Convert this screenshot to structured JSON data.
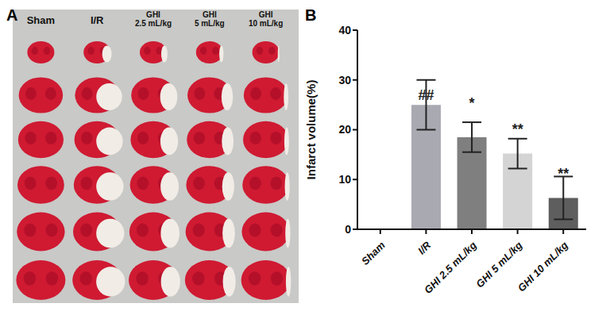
{
  "figure": {
    "panel_labels": [
      "A",
      "B"
    ],
    "photo_columns": [
      [
        "Sham"
      ],
      [
        "I/R"
      ],
      [
        "GHI",
        "2.5 mL/kg"
      ],
      [
        "GHI",
        "5 mL/kg"
      ],
      [
        "GHI",
        "10 mL/kg"
      ]
    ]
  },
  "chart_data": {
    "type": "bar",
    "y_label": "Infarct volume(%)",
    "categories": [
      "Sham",
      "I/R",
      "GHI 2.5 mL/kg",
      "GHI 5 mL/kg",
      "GHI 10 mL/kg"
    ],
    "values": [
      0,
      25,
      18.5,
      15.2,
      6.3
    ],
    "errors": [
      0,
      5,
      3,
      3,
      4.3
    ],
    "significance": [
      null,
      "##",
      "*",
      "**",
      "**"
    ],
    "colors": [
      "#a9a9b2",
      "#a9a9b2",
      "#7f7f7f",
      "#d4d4d4",
      "#5e5e5e"
    ],
    "ylim": [
      0,
      40
    ],
    "yticks": [
      0,
      10,
      20,
      30,
      40
    ],
    "grid": false
  }
}
